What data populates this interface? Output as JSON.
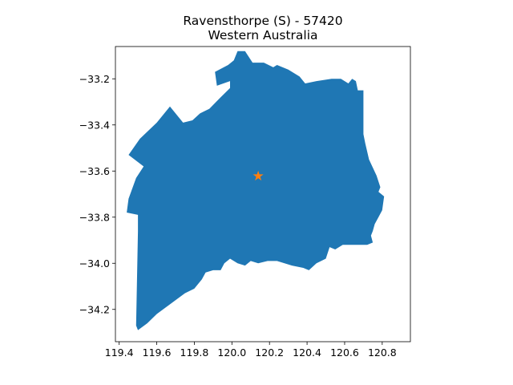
{
  "title": {
    "line1": "Ravensthorpe (S) - 57420",
    "line2": "Western Australia"
  },
  "colors": {
    "region_fill": "#1f77b4",
    "marker": "#ff7f0e",
    "axes": "#000000",
    "background": "#ffffff"
  },
  "map": {
    "type": "map",
    "marker_icon": "star-icon",
    "marker_point": {
      "lon": 120.14,
      "lat": -33.62
    },
    "xlim": [
      119.38,
      120.95
    ],
    "ylim": [
      -34.34,
      -33.06
    ],
    "x_ticks": [
      {
        "value": 119.4,
        "label": "119.4"
      },
      {
        "value": 119.6,
        "label": "119.6"
      },
      {
        "value": 119.8,
        "label": "119.8"
      },
      {
        "value": 120.0,
        "label": "120.0"
      },
      {
        "value": 120.2,
        "label": "120.2"
      },
      {
        "value": 120.4,
        "label": "120.4"
      },
      {
        "value": 120.6,
        "label": "120.6"
      },
      {
        "value": 120.8,
        "label": "120.8"
      }
    ],
    "y_ticks": [
      {
        "value": -33.2,
        "label": "−33.2"
      },
      {
        "value": -33.4,
        "label": "−33.4"
      },
      {
        "value": -33.6,
        "label": "−33.6"
      },
      {
        "value": -33.8,
        "label": "−33.8"
      },
      {
        "value": -34.0,
        "label": "−34.0"
      },
      {
        "value": -34.2,
        "label": "−34.2"
      }
    ],
    "boundary": [
      [
        120.03,
        -33.08
      ],
      [
        120.07,
        -33.08
      ],
      [
        120.11,
        -33.13
      ],
      [
        120.17,
        -33.13
      ],
      [
        120.22,
        -33.15
      ],
      [
        120.24,
        -33.14
      ],
      [
        120.3,
        -33.16
      ],
      [
        120.36,
        -33.19
      ],
      [
        120.39,
        -33.22
      ],
      [
        120.45,
        -33.21
      ],
      [
        120.53,
        -33.2
      ],
      [
        120.58,
        -33.2
      ],
      [
        120.62,
        -33.22
      ],
      [
        120.64,
        -33.2
      ],
      [
        120.66,
        -33.21
      ],
      [
        120.67,
        -33.25
      ],
      [
        120.7,
        -33.25
      ],
      [
        120.7,
        -33.44
      ],
      [
        120.71,
        -33.48
      ],
      [
        120.73,
        -33.55
      ],
      [
        120.77,
        -33.62
      ],
      [
        120.79,
        -33.67
      ],
      [
        120.78,
        -33.69
      ],
      [
        120.81,
        -33.71
      ],
      [
        120.8,
        -33.77
      ],
      [
        120.78,
        -33.8
      ],
      [
        120.76,
        -33.83
      ],
      [
        120.75,
        -33.86
      ],
      [
        120.74,
        -33.88
      ],
      [
        120.75,
        -33.91
      ],
      [
        120.72,
        -33.92
      ],
      [
        120.67,
        -33.92
      ],
      [
        120.59,
        -33.92
      ],
      [
        120.55,
        -33.94
      ],
      [
        120.52,
        -33.93
      ],
      [
        120.5,
        -33.98
      ],
      [
        120.45,
        -34.0
      ],
      [
        120.41,
        -34.03
      ],
      [
        120.38,
        -34.02
      ],
      [
        120.32,
        -34.01
      ],
      [
        120.24,
        -33.99
      ],
      [
        120.19,
        -33.99
      ],
      [
        120.14,
        -34.0
      ],
      [
        120.1,
        -33.99
      ],
      [
        120.07,
        -34.01
      ],
      [
        120.03,
        -34.0
      ],
      [
        119.99,
        -33.98
      ],
      [
        119.96,
        -34.0
      ],
      [
        119.94,
        -34.03
      ],
      [
        119.9,
        -34.03
      ],
      [
        119.86,
        -34.04
      ],
      [
        119.84,
        -34.07
      ],
      [
        119.8,
        -34.11
      ],
      [
        119.75,
        -34.13
      ],
      [
        119.7,
        -34.16
      ],
      [
        119.65,
        -34.19
      ],
      [
        119.6,
        -34.22
      ],
      [
        119.55,
        -34.26
      ],
      [
        119.5,
        -34.29
      ],
      [
        119.49,
        -34.27
      ],
      [
        119.5,
        -33.86
      ],
      [
        119.5,
        -33.79
      ],
      [
        119.44,
        -33.78
      ],
      [
        119.45,
        -33.72
      ],
      [
        119.49,
        -33.63
      ],
      [
        119.53,
        -33.58
      ],
      [
        119.45,
        -33.53
      ],
      [
        119.51,
        -33.46
      ],
      [
        119.6,
        -33.39
      ],
      [
        119.67,
        -33.32
      ],
      [
        119.74,
        -33.39
      ],
      [
        119.79,
        -33.38
      ],
      [
        119.83,
        -33.35
      ],
      [
        119.88,
        -33.33
      ],
      [
        119.94,
        -33.28
      ],
      [
        119.99,
        -33.24
      ],
      [
        119.99,
        -33.21
      ],
      [
        119.92,
        -33.23
      ],
      [
        119.91,
        -33.17
      ],
      [
        119.98,
        -33.14
      ],
      [
        120.01,
        -33.12
      ]
    ]
  }
}
